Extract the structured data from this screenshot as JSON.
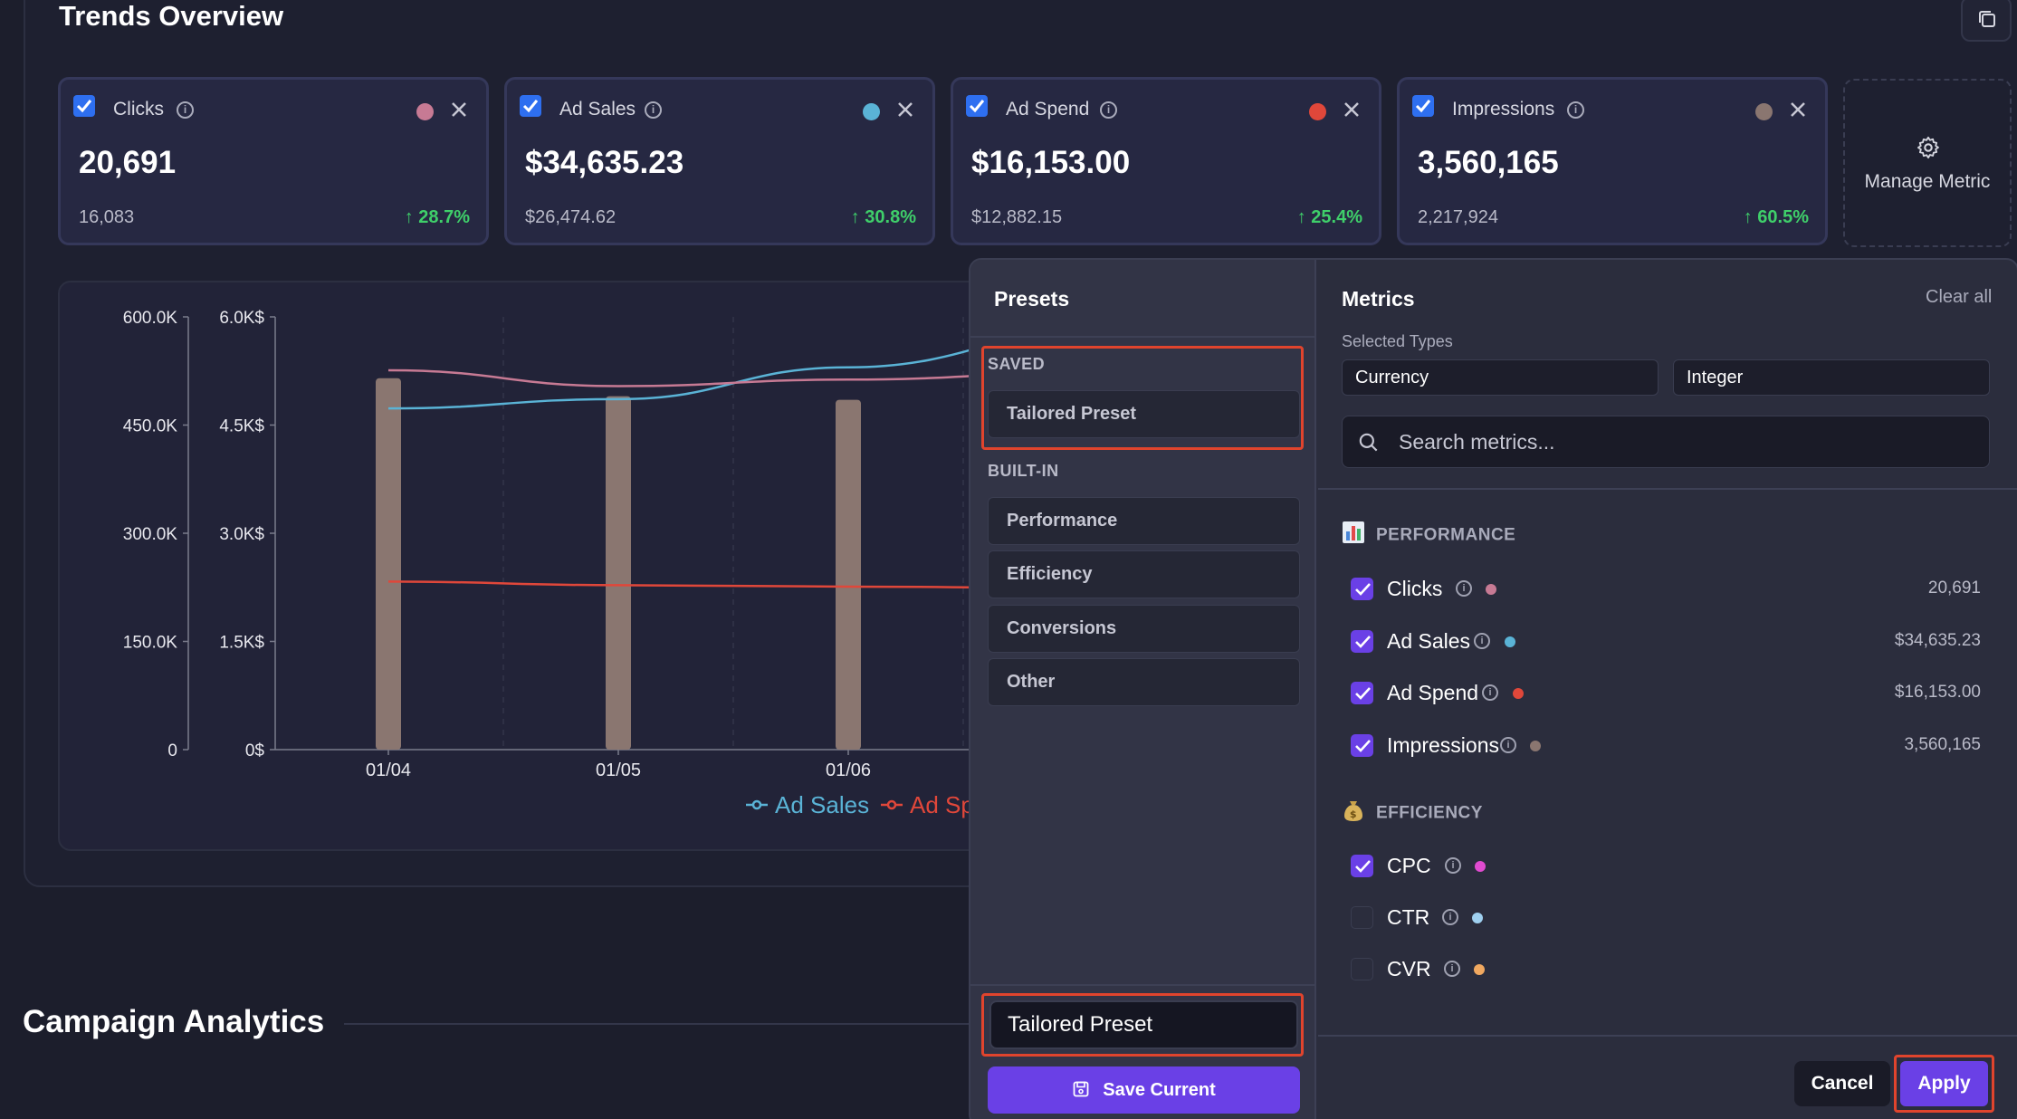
{
  "page": {
    "title": "Trends Overview",
    "section2_title": "Campaign Analytics"
  },
  "metric_cards": [
    {
      "name": "Clicks",
      "value": "20,691",
      "previous": "16,083",
      "change": "28.7%",
      "color": "#c77a94"
    },
    {
      "name": "Ad Sales",
      "value": "$34,635.23",
      "previous": "$26,474.62",
      "change": "30.8%",
      "color": "#5ab3d6"
    },
    {
      "name": "Ad Spend",
      "value": "$16,153.00",
      "previous": "$12,882.15",
      "change": "25.4%",
      "color": "#e0473a"
    },
    {
      "name": "Impressions",
      "value": "3,560,165",
      "previous": "2,217,924",
      "change": "60.5%",
      "color": "#8a7670"
    }
  ],
  "manage_metric": {
    "label": "Manage Metric"
  },
  "chart_data": {
    "type": "bar",
    "categories": [
      "01/04",
      "01/05",
      "01/06"
    ],
    "y_left": {
      "ticks": [
        "600.0K",
        "450.0K",
        "300.0K",
        "150.0K",
        "0"
      ],
      "range": [
        0,
        600000
      ]
    },
    "y_right": {
      "ticks": [
        "6.0K$",
        "4.5K$",
        "3.0K$",
        "1.5K$",
        "0$"
      ],
      "range": [
        0,
        6000
      ]
    },
    "series": [
      {
        "name": "Impressions",
        "kind": "bar",
        "axis": "left",
        "values": [
          515000,
          490000,
          485000
        ],
        "color": "#8a7670"
      },
      {
        "name": "Ad Sales",
        "kind": "line",
        "axis": "right",
        "values": [
          4730,
          4860,
          5300
        ],
        "color": "#5ab3d6"
      },
      {
        "name": "Clicks",
        "kind": "line",
        "axis": "right",
        "values": [
          5260,
          5040,
          5130
        ],
        "color": "#c77a94"
      },
      {
        "name": "Ad Spend",
        "kind": "line",
        "axis": "right",
        "values": [
          2330,
          2280,
          2260
        ],
        "color": "#e0473a"
      }
    ],
    "legend": [
      "Ad Sales",
      "Ad Sp"
    ]
  },
  "presets": {
    "title": "Presets",
    "saved_label": "SAVED",
    "saved": [
      "Tailored Preset"
    ],
    "builtin_label": "BUILT-IN",
    "builtin": [
      "Performance",
      "Efficiency",
      "Conversions",
      "Other"
    ],
    "name_input_value": "Tailored Preset",
    "save_button": "Save Current"
  },
  "metrics_panel": {
    "title": "Metrics",
    "clear_all": "Clear all",
    "selected_types_label": "Selected Types",
    "types": [
      "Currency",
      "Integer"
    ],
    "search_placeholder": "Search metrics...",
    "groups": [
      {
        "label": "PERFORMANCE",
        "icon": "bar-chart-icon",
        "items": [
          {
            "name": "Clicks",
            "value": "20,691",
            "checked": true,
            "color": "#c77a94"
          },
          {
            "name": "Ad Sales",
            "value": "$34,635.23",
            "checked": true,
            "color": "#5ab3d6"
          },
          {
            "name": "Ad Spend",
            "value": "$16,153.00",
            "checked": true,
            "color": "#e0473a"
          },
          {
            "name": "Impressions",
            "value": "3,560,165",
            "checked": true,
            "color": "#8a7670"
          }
        ]
      },
      {
        "label": "EFFICIENCY",
        "icon": "money-bag-icon",
        "items": [
          {
            "name": "CPC",
            "value": "",
            "checked": true,
            "color": "#e04bd0"
          },
          {
            "name": "CTR",
            "value": "",
            "checked": false,
            "color": "#9fd0f0"
          },
          {
            "name": "CVR",
            "value": "",
            "checked": false,
            "color": "#f0a860"
          }
        ]
      }
    ],
    "cancel": "Cancel",
    "apply": "Apply"
  }
}
